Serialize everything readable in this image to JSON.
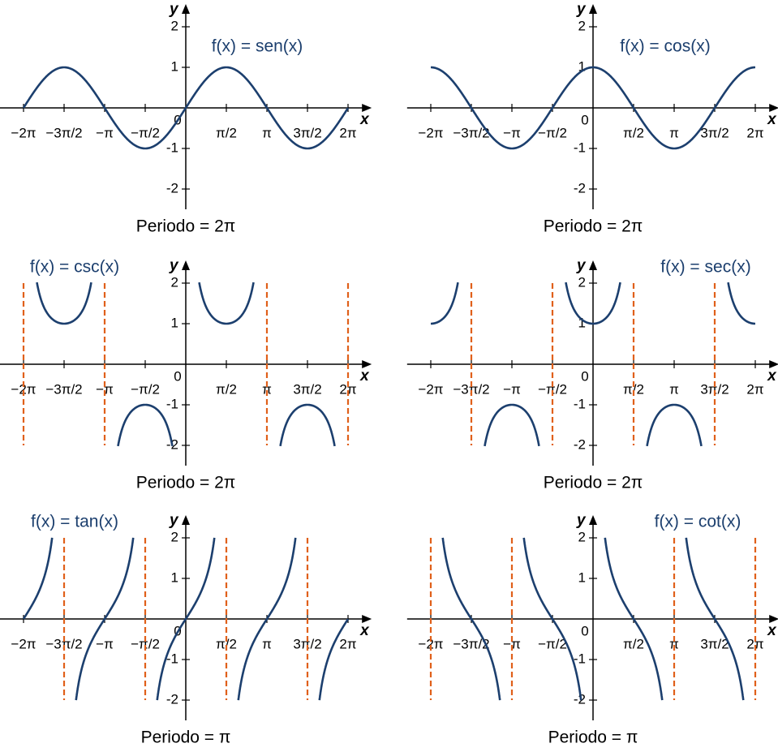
{
  "chart_data": [
    {
      "type": "line",
      "function": "sin",
      "title": "f(x) = sen(x)",
      "caption": "Periodo = 2π",
      "xlabel": "x",
      "ylabel": "y",
      "color": "#1c3f6e",
      "xlim": [
        -7.2,
        7.2
      ],
      "ylim": [
        -2.5,
        2.5
      ],
      "xticks": [
        {
          "value": -6.2832,
          "label": "−2π"
        },
        {
          "value": -4.7124,
          "label": "−3π/2"
        },
        {
          "value": -3.1416,
          "label": "−π"
        },
        {
          "value": -1.5708,
          "label": "−π/2"
        },
        0,
        {
          "value": 1.5708,
          "label": "π/2"
        },
        {
          "value": 3.1416,
          "label": "π"
        },
        {
          "value": 4.7124,
          "label": "3π/2"
        },
        {
          "value": 6.2832,
          "label": "2π"
        }
      ],
      "yticks": [
        -2,
        -1,
        1,
        2
      ],
      "asymptotes": [],
      "asymptote_color": "#e0601a"
    },
    {
      "type": "line",
      "function": "cos",
      "title": "f(x) = cos(x)",
      "caption": "Periodo = 2π",
      "xlabel": "x",
      "ylabel": "y",
      "color": "#1c3f6e",
      "xlim": [
        -7.2,
        7.2
      ],
      "ylim": [
        -2.5,
        2.5
      ],
      "xticks": [
        {
          "value": -6.2832,
          "label": "−2π"
        },
        {
          "value": -4.7124,
          "label": "−3π/2"
        },
        {
          "value": -3.1416,
          "label": "−π"
        },
        {
          "value": -1.5708,
          "label": "−π/2"
        },
        0,
        {
          "value": 1.5708,
          "label": "π/2"
        },
        {
          "value": 3.1416,
          "label": "π"
        },
        {
          "value": 4.7124,
          "label": "3π/2"
        },
        {
          "value": 6.2832,
          "label": "2π"
        }
      ],
      "yticks": [
        -2,
        -1,
        1,
        2
      ],
      "asymptotes": [],
      "asymptote_color": "#e0601a"
    },
    {
      "type": "line",
      "function": "csc",
      "title": "f(x) = csc(x)",
      "caption": "Periodo = 2π",
      "xlabel": "x",
      "ylabel": "y",
      "color": "#1c3f6e",
      "xlim": [
        -7.2,
        7.2
      ],
      "ylim": [
        -2.5,
        2.5
      ],
      "xticks": [
        {
          "value": -6.2832,
          "label": "−2π"
        },
        {
          "value": -4.7124,
          "label": "−3π/2"
        },
        {
          "value": -3.1416,
          "label": "−π"
        },
        {
          "value": -1.5708,
          "label": "−π/2"
        },
        0,
        {
          "value": 1.5708,
          "label": "π/2"
        },
        {
          "value": 3.1416,
          "label": "π"
        },
        {
          "value": 4.7124,
          "label": "3π/2"
        },
        {
          "value": 6.2832,
          "label": "2π"
        }
      ],
      "yticks": [
        -2,
        -1,
        1,
        2
      ],
      "asymptotes": [
        -6.2832,
        -3.1416,
        3.1416,
        6.2832
      ],
      "asymptote_color": "#e0601a"
    },
    {
      "type": "line",
      "function": "sec",
      "title": "f(x) = sec(x)",
      "caption": "Periodo = 2π",
      "xlabel": "x",
      "ylabel": "y",
      "color": "#1c3f6e",
      "xlim": [
        -7.2,
        7.2
      ],
      "ylim": [
        -2.5,
        2.5
      ],
      "xticks": [
        {
          "value": -6.2832,
          "label": "−2π"
        },
        {
          "value": -4.7124,
          "label": "−3π/2"
        },
        {
          "value": -3.1416,
          "label": "−π"
        },
        {
          "value": -1.5708,
          "label": "−π/2"
        },
        0,
        {
          "value": 1.5708,
          "label": "π/2"
        },
        {
          "value": 3.1416,
          "label": "π"
        },
        {
          "value": 4.7124,
          "label": "3π/2"
        },
        {
          "value": 6.2832,
          "label": "2π"
        }
      ],
      "yticks": [
        -2,
        -1,
        1,
        2
      ],
      "asymptotes": [
        -4.7124,
        -1.5708,
        1.5708,
        4.7124
      ],
      "asymptote_color": "#e0601a"
    },
    {
      "type": "line",
      "function": "tan",
      "title": "f(x) = tan(x)",
      "caption": "Periodo = π",
      "xlabel": "x",
      "ylabel": "y",
      "color": "#1c3f6e",
      "xlim": [
        -7.2,
        7.2
      ],
      "ylim": [
        -2.5,
        2.5
      ],
      "xticks": [
        {
          "value": -6.2832,
          "label": "−2π"
        },
        {
          "value": -4.7124,
          "label": "−3π/2"
        },
        {
          "value": -3.1416,
          "label": "−π"
        },
        {
          "value": -1.5708,
          "label": "−π/2"
        },
        0,
        {
          "value": 1.5708,
          "label": "π/2"
        },
        {
          "value": 3.1416,
          "label": "π"
        },
        {
          "value": 4.7124,
          "label": "3π/2"
        },
        {
          "value": 6.2832,
          "label": "2π"
        }
      ],
      "yticks": [
        -2,
        -1,
        1,
        2
      ],
      "asymptotes": [
        -4.7124,
        -1.5708,
        1.5708,
        4.7124
      ],
      "asymptote_color": "#e0601a"
    },
    {
      "type": "line",
      "function": "cot",
      "title": "f(x) = cot(x)",
      "caption": "Periodo = π",
      "xlabel": "x",
      "ylabel": "y",
      "color": "#1c3f6e",
      "xlim": [
        -7.2,
        7.2
      ],
      "ylim": [
        -2.5,
        2.5
      ],
      "xticks": [
        {
          "value": -6.2832,
          "label": "−2π"
        },
        {
          "value": -4.7124,
          "label": "−3π/2"
        },
        {
          "value": -3.1416,
          "label": "−π"
        },
        {
          "value": -1.5708,
          "label": "−π/2"
        },
        0,
        {
          "value": 1.5708,
          "label": "π/2"
        },
        {
          "value": 3.1416,
          "label": "π"
        },
        {
          "value": 4.7124,
          "label": "3π/2"
        },
        {
          "value": 6.2832,
          "label": "2π"
        }
      ],
      "yticks": [
        -2,
        -1,
        1,
        2
      ],
      "asymptotes": [
        -6.2832,
        -3.1416,
        3.1416,
        6.2832
      ],
      "asymptote_color": "#e0601a"
    }
  ]
}
